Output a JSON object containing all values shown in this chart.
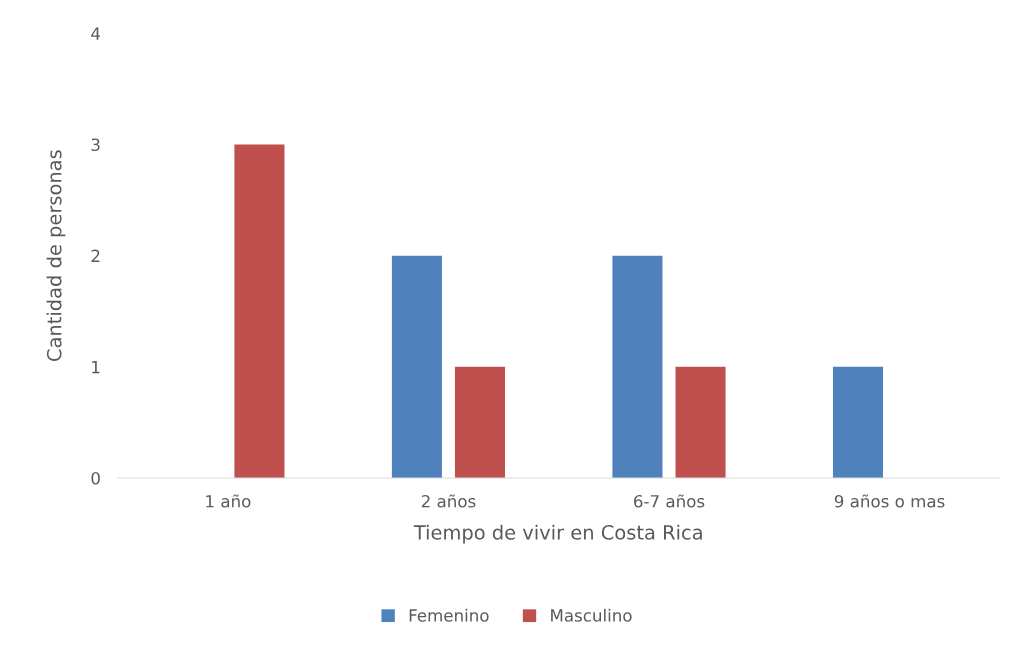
{
  "chart_data": {
    "type": "bar",
    "xlabel": "Tiempo de vivir en Costa Rica",
    "ylabel": "Cantidad de personas",
    "categories": [
      "1 año",
      "2 años",
      "6-7 años",
      "9 años o mas"
    ],
    "series": [
      {
        "name": "Femenino",
        "color": "#4f81bd",
        "values": [
          0,
          2,
          2,
          1
        ]
      },
      {
        "name": "Masculino",
        "color": "#c0504d",
        "values": [
          3,
          1,
          1,
          0
        ]
      }
    ],
    "ylim": [
      0,
      4
    ],
    "yticks": [
      0,
      1,
      2,
      3,
      4
    ],
    "grid": false,
    "legend": "bottom"
  }
}
